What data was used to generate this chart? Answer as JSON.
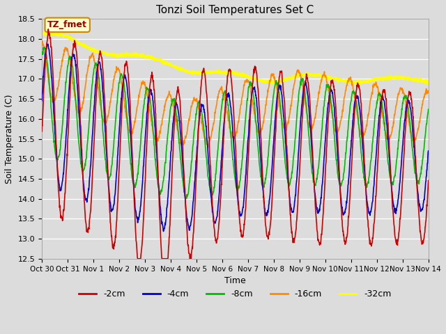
{
  "title": "Tonzi Soil Temperatures Set C",
  "xlabel": "Time",
  "ylabel": "Soil Temperature (C)",
  "ylim": [
    12.5,
    18.5
  ],
  "background_color": "#dcdcdc",
  "plot_bg_color": "#dcdcdc",
  "legend_label": "TZ_fmet",
  "legend_bg": "#ffffcc",
  "legend_edge": "#cc8800",
  "series_colors": {
    "-2cm": "#cc0000",
    "-4cm": "#0000cc",
    "-8cm": "#00bb00",
    "-16cm": "#ff8800",
    "-32cm": "#ffff00"
  },
  "x_tick_labels": [
    "Oct 30",
    "Oct 31",
    "Nov 1",
    "Nov 2",
    "Nov 3",
    "Nov 4",
    "Nov 5",
    "Nov 6",
    "Nov 7",
    "Nov 8",
    "Nov 9",
    "Nov 10",
    "Nov 11",
    "Nov 12",
    "Nov 13",
    "Nov 14"
  ],
  "n_days": 15,
  "pts_per_day": 96
}
